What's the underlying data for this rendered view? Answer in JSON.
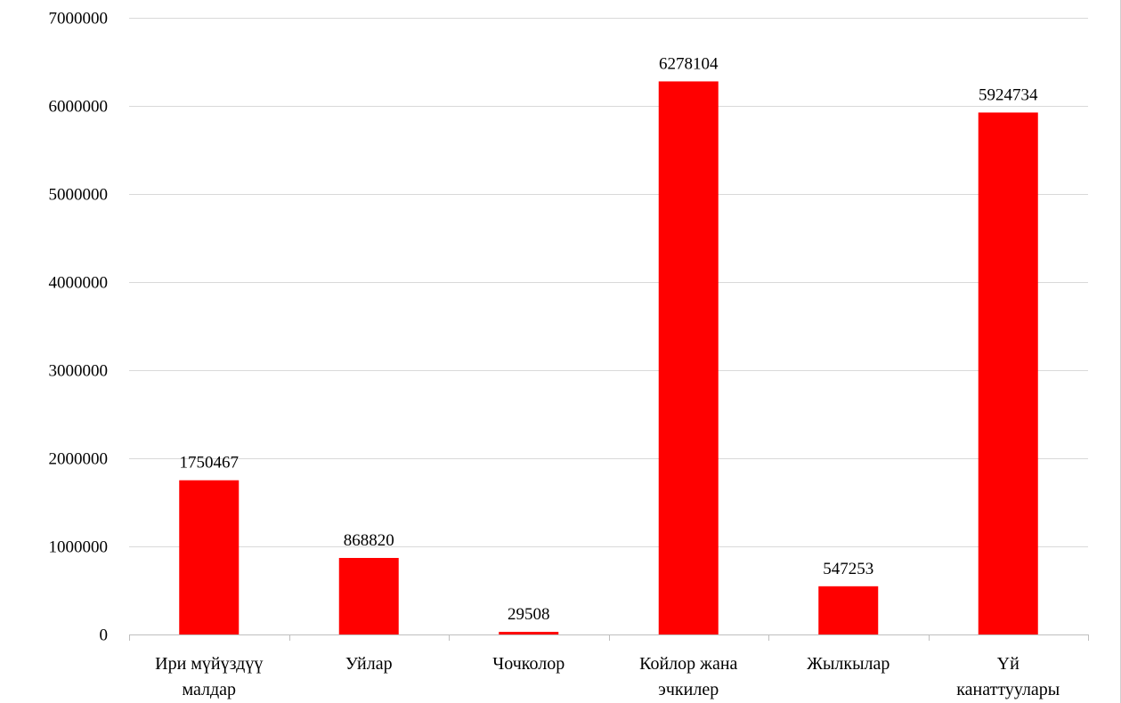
{
  "chart_data": {
    "type": "bar",
    "categories": [
      [
        "Ири мүйүздүү",
        "малдар"
      ],
      [
        "Уйлар"
      ],
      [
        "Чочколор"
      ],
      [
        "Койлор жана",
        "эчкилер"
      ],
      [
        "Жылкылар"
      ],
      [
        "Үй",
        "канаттуулары"
      ]
    ],
    "values": [
      1750467,
      868820,
      29508,
      6278104,
      547253,
      5924734
    ],
    "data_labels": [
      "1750467",
      "868820",
      "29508",
      "6278104",
      "547253",
      "5924734"
    ],
    "ylim": [
      0,
      7000000
    ],
    "yticks": [
      0,
      1000000,
      2000000,
      3000000,
      4000000,
      5000000,
      6000000,
      7000000
    ],
    "ytick_labels": [
      "0",
      "1000000",
      "2000000",
      "3000000",
      "4000000",
      "5000000",
      "6000000",
      "7000000"
    ],
    "grid": true,
    "legend": "none",
    "bar_color": "#ff0000",
    "grid_color": "#d9d9d9",
    "axis_color": "#bfbfbf"
  }
}
